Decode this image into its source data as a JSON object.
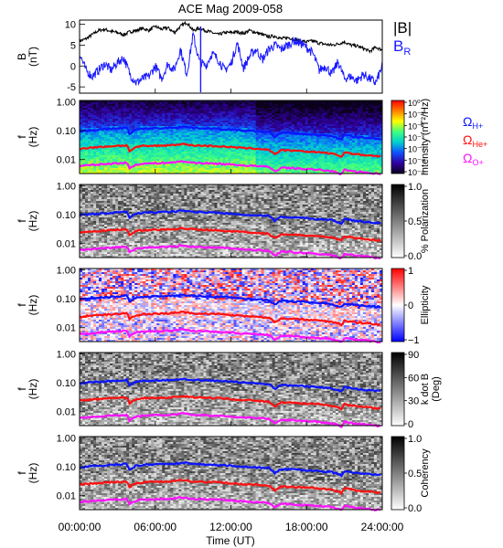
{
  "chart_data": {
    "type": "heatmap",
    "title": "ACE Mag 2009-058",
    "xlabel": "Time (UT)",
    "x_ticks": [
      "00:00:00",
      "06:00:00",
      "12:00:00",
      "18:00:00",
      "24:00:00"
    ],
    "x_range_hours": [
      0,
      24
    ],
    "colors": {
      "mag_total": "#000000",
      "br": "#1a1aff",
      "h_plus": "#0a14ff",
      "he_plus": "#ff1010",
      "o_plus": "#ff10ff"
    },
    "panels": [
      {
        "id": "magnetic-field",
        "type": "line",
        "ylabel": [
          "B",
          "(nT)"
        ],
        "yticks": [
          "10",
          "5",
          "0",
          "-5"
        ],
        "ylim": [
          -6.5,
          11
        ],
        "legend": [
          {
            "label": "|B|",
            "color": "#000000"
          },
          {
            "label": "B",
            "sub": "R",
            "color": "#1a1aff"
          }
        ],
        "series": [
          {
            "name": "|B|",
            "color": "#000000",
            "x": [
              0,
              0.5,
              1,
              1.5,
              2,
              2.5,
              3,
              3.5,
              4,
              4.5,
              5,
              5.5,
              6,
              6.5,
              7,
              7.5,
              8,
              8.5,
              9,
              9.5,
              10,
              10.5,
              11,
              11.5,
              12,
              12.5,
              13,
              13.5,
              14,
              14.5,
              15,
              15.5,
              16,
              16.5,
              17,
              17.5,
              18,
              18.5,
              19,
              19.5,
              20,
              20.5,
              21,
              21.5,
              22,
              22.5,
              23,
              23.5,
              24
            ],
            "y": [
              6,
              6.5,
              7.5,
              8.5,
              8.8,
              8.3,
              8,
              7.5,
              8.2,
              8.5,
              9,
              8.5,
              9.5,
              8.8,
              9.2,
              8,
              9.5,
              10.5,
              8.5,
              9,
              8.5,
              8,
              7.5,
              8,
              8,
              8.2,
              7.8,
              8.5,
              8,
              7.5,
              7,
              7.2,
              6.5,
              6.8,
              6.5,
              6,
              5.8,
              6,
              5.5,
              5.2,
              5,
              5.3,
              5.8,
              5,
              4.8,
              4.2,
              3.5,
              4.5,
              3.8
            ]
          },
          {
            "name": "B_R",
            "color": "#1a1aff",
            "x": [
              0,
              0.5,
              1,
              1.5,
              2,
              2.5,
              3,
              3.5,
              4,
              4.5,
              5,
              5.5,
              6,
              6.5,
              7,
              7.5,
              8,
              8.5,
              9,
              9.5,
              10,
              10.5,
              11,
              11.5,
              12,
              12.5,
              13,
              13.5,
              14,
              14.5,
              15,
              15.5,
              16,
              16.5,
              17,
              17.5,
              18,
              18.5,
              19,
              19.5,
              20,
              20.5,
              21,
              21.5,
              22,
              22.5,
              23,
              23.5,
              24
            ],
            "y": [
              3,
              -1,
              -2.5,
              -1,
              0.5,
              -1,
              0.8,
              2,
              -2,
              -4,
              -3,
              -2.5,
              0,
              -3,
              0.5,
              -1,
              4,
              -2,
              7.5,
              1,
              0,
              3,
              1.5,
              -1,
              0.5,
              5.5,
              -0.5,
              2.5,
              4,
              1.5,
              4,
              5,
              4,
              5,
              6,
              5.5,
              4.5,
              3,
              -1,
              0,
              -2,
              1,
              -3,
              -2.5,
              -3.5,
              -2,
              -3,
              -4,
              0
            ]
          }
        ]
      },
      {
        "id": "intensity",
        "type": "heatmap",
        "ylabel": [
          "f",
          "(Hz)"
        ],
        "yticks": [
          "1.00",
          "0.10",
          "0.01"
        ],
        "ylim": [
          0.0033,
          1.1
        ],
        "yscale": "log",
        "colorbar": {
          "label": "Intensity (nT²/Hz)",
          "ticks": [
            "10⁰",
            "10⁻¹",
            "10⁻²",
            "10⁻³",
            "10⁻⁴",
            "10⁻⁵",
            "10⁻⁶"
          ],
          "colors": [
            "#ff0000",
            "#ff8000",
            "#ffff00",
            "#40ff80",
            "#00d0d0",
            "#1050ff",
            "#3000a0",
            "#0a0018"
          ]
        },
        "gyro_legend": [
          {
            "label": "Ω",
            "sub": "H+",
            "color": "#0a14ff"
          },
          {
            "label": "Ω",
            "sub": "He+",
            "color": "#ff1010"
          },
          {
            "label": "Ω",
            "sub": "O+",
            "color": "#ff10ff"
          }
        ]
      },
      {
        "id": "polarization",
        "type": "heatmap",
        "ylabel": [
          "f",
          "(Hz)"
        ],
        "yticks": [
          "1.00",
          "0.10",
          "0.01"
        ],
        "ylim": [
          0.0033,
          1.1
        ],
        "yscale": "log",
        "colorbar": {
          "label": "% Polarization",
          "ticks": [
            "1.0",
            "0.5",
            "0.0"
          ],
          "colors": [
            "#000000",
            "#ffffff"
          ]
        }
      },
      {
        "id": "ellipticity",
        "type": "heatmap",
        "ylabel": [
          "f",
          "(Hz)"
        ],
        "yticks": [
          "1.00",
          "0.10",
          "0.01"
        ],
        "ylim": [
          0.0033,
          1.1
        ],
        "yscale": "log",
        "colorbar": {
          "label": "Ellipticity",
          "ticks": [
            "1",
            "0",
            "−1"
          ],
          "colors": [
            "#ff0000",
            "#ffffff",
            "#0000ff"
          ]
        }
      },
      {
        "id": "wave-normal",
        "type": "heatmap",
        "ylabel": [
          "f",
          "(Hz)"
        ],
        "yticks": [
          "1.00",
          "0.10",
          "0.01"
        ],
        "ylim": [
          0.0033,
          1.1
        ],
        "yscale": "log",
        "colorbar": {
          "label": "k dot B",
          "label2": "(Deg)",
          "ticks": [
            "90",
            "60",
            "30",
            "0"
          ],
          "colors": [
            "#000000",
            "#ffffff"
          ]
        }
      },
      {
        "id": "coherency",
        "type": "heatmap",
        "ylabel": [
          "f",
          "(Hz)"
        ],
        "yticks": [
          "1.00",
          "0.10",
          "0.01"
        ],
        "ylim": [
          0.0033,
          1.1
        ],
        "yscale": "log",
        "colorbar": {
          "label": "Coherency",
          "ticks": [
            "1.0",
            "0.5",
            "0.0"
          ],
          "colors": [
            "#000000",
            "#ffffff"
          ]
        }
      }
    ],
    "gyrofrequency_curves": [
      {
        "name": "H+",
        "color": "#0a14ff",
        "x": [
          0,
          1,
          2,
          3,
          3.8,
          3.9,
          4.5,
          5,
          6,
          7,
          7.8,
          8,
          9,
          10,
          11,
          12,
          13,
          14,
          15,
          15.5,
          16,
          17,
          18,
          19,
          20,
          20.8,
          21,
          22,
          23,
          24
        ],
        "y": [
          0.095,
          0.105,
          0.11,
          0.12,
          0.125,
          0.075,
          0.11,
          0.115,
          0.12,
          0.125,
          0.13,
          0.14,
          0.125,
          0.12,
          0.115,
          0.11,
          0.1,
          0.095,
          0.09,
          0.06,
          0.085,
          0.08,
          0.075,
          0.07,
          0.065,
          0.05,
          0.07,
          0.06,
          0.055,
          0.05
        ]
      },
      {
        "name": "He+",
        "color": "#ff1010",
        "x": [
          0,
          1,
          2,
          3,
          3.8,
          3.9,
          4.5,
          5,
          6,
          7,
          7.8,
          8,
          9,
          10,
          11,
          12,
          13,
          14,
          15,
          15.5,
          16,
          17,
          18,
          19,
          20,
          20.8,
          21,
          22,
          23,
          24
        ],
        "y": [
          0.024,
          0.026,
          0.028,
          0.03,
          0.031,
          0.019,
          0.027,
          0.029,
          0.03,
          0.031,
          0.033,
          0.035,
          0.031,
          0.03,
          0.029,
          0.027,
          0.025,
          0.024,
          0.022,
          0.015,
          0.021,
          0.02,
          0.019,
          0.018,
          0.016,
          0.0125,
          0.018,
          0.015,
          0.014,
          0.0125
        ]
      },
      {
        "name": "O+",
        "color": "#ff10ff",
        "x": [
          0,
          1,
          2,
          3,
          3.8,
          3.9,
          4.5,
          5,
          6,
          7,
          7.8,
          8,
          9,
          10,
          11,
          12,
          13,
          14,
          15,
          15.5,
          16,
          17,
          18,
          19,
          20,
          20.8,
          21,
          22,
          23,
          24
        ],
        "y": [
          0.006,
          0.0065,
          0.007,
          0.0075,
          0.0078,
          0.0047,
          0.0068,
          0.0072,
          0.0075,
          0.0078,
          0.0082,
          0.0088,
          0.0078,
          0.0075,
          0.0072,
          0.0068,
          0.0063,
          0.006,
          0.0056,
          0.0038,
          0.0053,
          0.005,
          0.0047,
          0.0044,
          0.004,
          0.0031,
          0.0044,
          0.0038,
          0.0035,
          0.0031
        ]
      }
    ]
  }
}
